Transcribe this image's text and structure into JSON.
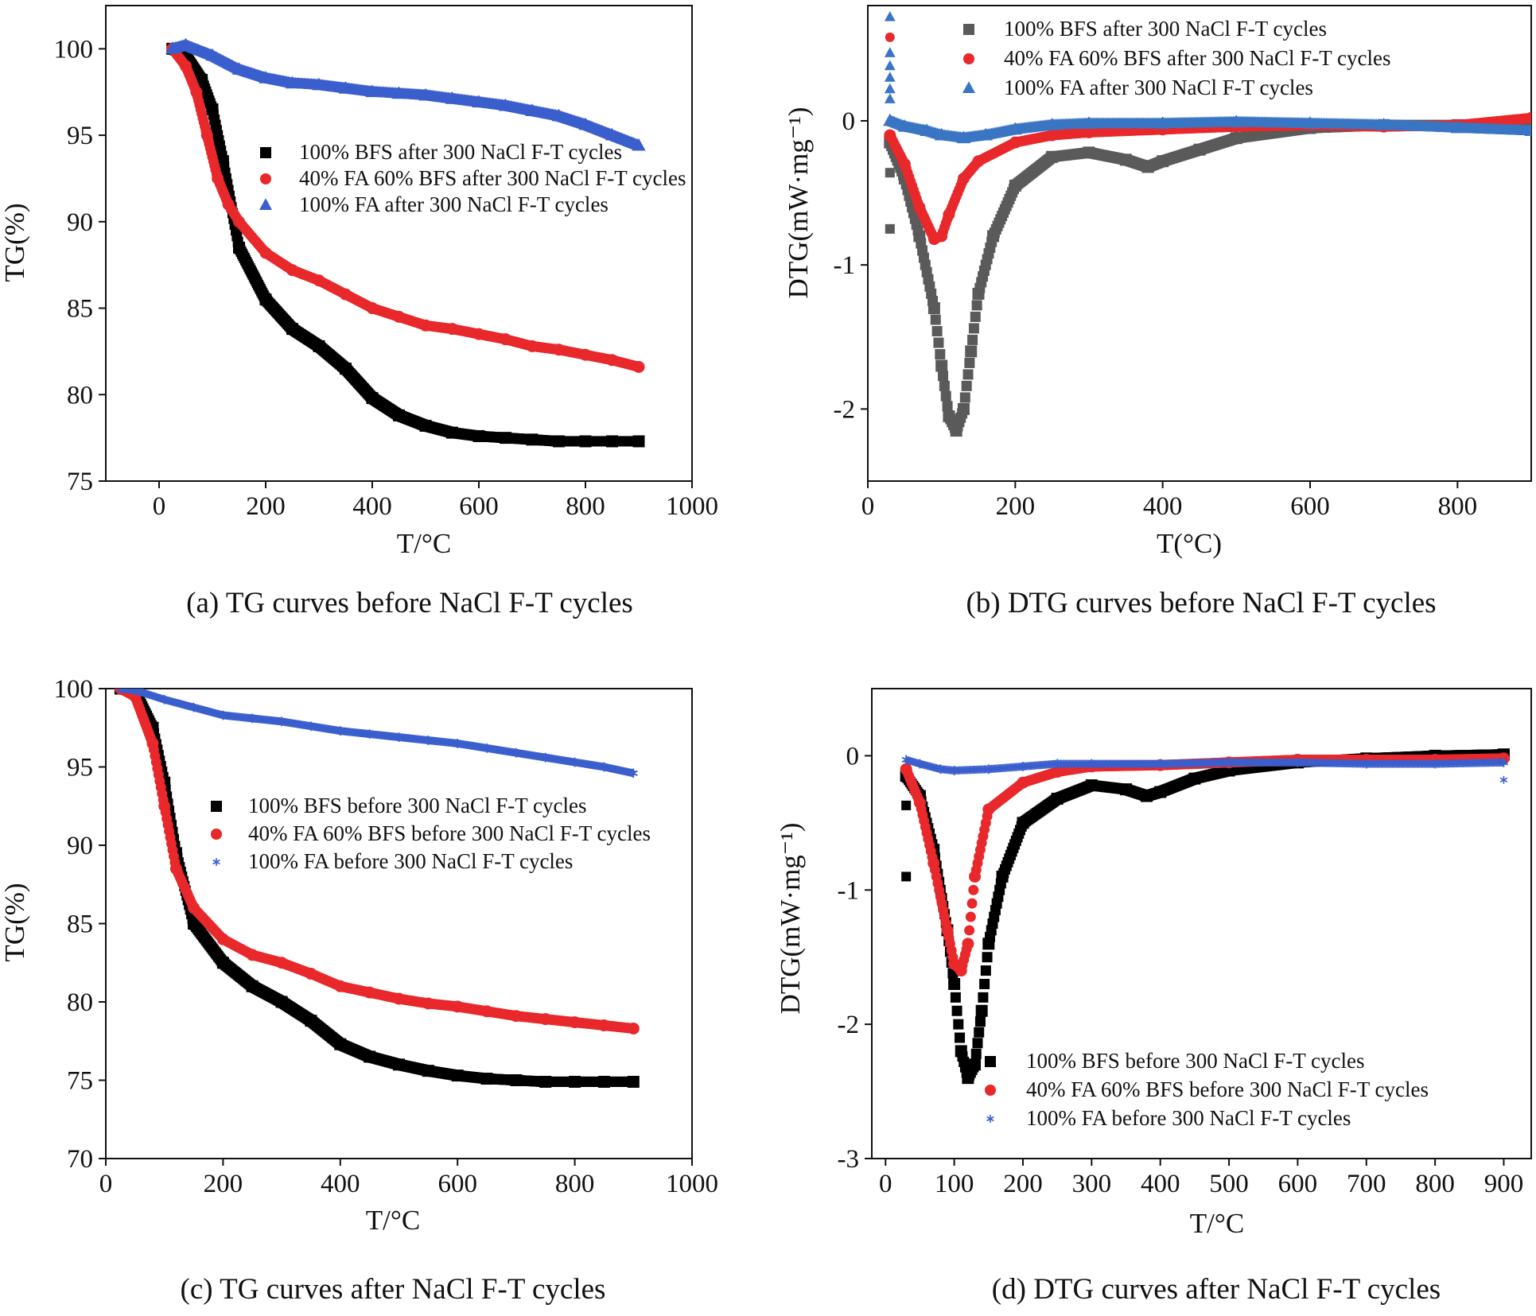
{
  "chart_data": [
    {
      "id": "a",
      "type": "scatter",
      "caption": "(a) TG curves before NaCl F-T cycles",
      "xlabel": "T/°C",
      "ylabel": "TG(%)",
      "xlim": [
        -100,
        1000
      ],
      "ylim": [
        75,
        102.5
      ],
      "xticks": [
        0,
        200,
        400,
        600,
        800,
        1000
      ],
      "yticks": [
        75,
        80,
        85,
        90,
        95,
        100
      ],
      "grid": false,
      "legend": "center-right",
      "series": [
        {
          "name": "100% BFS after 300 NaCl F-T cycles",
          "color": "#000000",
          "marker": "square",
          "x": [
            25,
            50,
            80,
            100,
            120,
            150,
            200,
            250,
            300,
            350,
            400,
            450,
            500,
            550,
            600,
            650,
            700,
            750,
            800,
            850,
            900
          ],
          "y": [
            100,
            99.6,
            98.2,
            96.5,
            93.5,
            88.5,
            85.5,
            83.8,
            82.8,
            81.5,
            79.8,
            78.8,
            78.2,
            77.8,
            77.6,
            77.5,
            77.4,
            77.3,
            77.3,
            77.3,
            77.3
          ]
        },
        {
          "name": "40% FA 60% BFS after 300 NaCl F-T cycles",
          "color": "#e8282b",
          "marker": "circle",
          "x": [
            25,
            50,
            70,
            90,
            110,
            130,
            150,
            200,
            250,
            300,
            350,
            400,
            450,
            500,
            550,
            600,
            650,
            700,
            750,
            800,
            850,
            900
          ],
          "y": [
            100,
            99,
            97.5,
            95,
            92.5,
            91,
            90,
            88.2,
            87.2,
            86.6,
            85.8,
            85,
            84.5,
            84,
            83.8,
            83.5,
            83.2,
            82.8,
            82.6,
            82.3,
            82,
            81.6
          ]
        },
        {
          "name": "100% FA after 300 NaCl F-T cycles",
          "color": "#3a5fcd",
          "marker": "triangle",
          "x": [
            25,
            50,
            100,
            150,
            200,
            250,
            300,
            350,
            400,
            450,
            500,
            550,
            600,
            650,
            700,
            750,
            800,
            850,
            900
          ],
          "y": [
            100,
            100.2,
            99.6,
            98.8,
            98.3,
            98,
            97.9,
            97.7,
            97.5,
            97.4,
            97.3,
            97.1,
            96.9,
            96.7,
            96.4,
            96.1,
            95.6,
            95.0,
            94.4
          ]
        }
      ]
    },
    {
      "id": "b",
      "type": "scatter",
      "caption": "(b) DTG curves before NaCl F-T cycles",
      "xlabel": "T(°C)",
      "ylabel": "DTG(mW·mg⁻¹)",
      "xlim": [
        0,
        900
      ],
      "ylim": [
        -2.5,
        0.8
      ],
      "xticks": [
        0,
        200,
        400,
        600,
        800
      ],
      "yticks": [
        -2,
        -1,
        0
      ],
      "grid": false,
      "legend": "top-right",
      "series": [
        {
          "name": "100% BFS after 300 NaCl F-T cycles",
          "color": "#5a5a5a",
          "marker": "square",
          "x": [
            30,
            50,
            70,
            90,
            100,
            110,
            120,
            130,
            140,
            150,
            170,
            200,
            250,
            300,
            350,
            380,
            400,
            450,
            500,
            600,
            700,
            800,
            900
          ],
          "y": [
            -0.15,
            -0.4,
            -0.8,
            -1.3,
            -1.7,
            -2.05,
            -2.15,
            -2.0,
            -1.6,
            -1.2,
            -0.8,
            -0.45,
            -0.25,
            -0.22,
            -0.27,
            -0.32,
            -0.28,
            -0.2,
            -0.12,
            -0.05,
            -0.03,
            -0.03,
            -0.01
          ]
        },
        {
          "name": "40% FA 60% BFS after 300 NaCl F-T cycles",
          "color": "#e8282b",
          "marker": "circle",
          "x": [
            30,
            50,
            70,
            90,
            100,
            110,
            130,
            150,
            200,
            250,
            300,
            400,
            500,
            600,
            700,
            800,
            900
          ],
          "y": [
            -0.1,
            -0.3,
            -0.6,
            -0.82,
            -0.8,
            -0.65,
            -0.4,
            -0.28,
            -0.15,
            -0.1,
            -0.08,
            -0.06,
            -0.04,
            -0.03,
            -0.04,
            -0.03,
            0.02
          ]
        },
        {
          "name": "100% FA after 300 NaCl F-T cycles",
          "color": "#3a75c4",
          "marker": "triangle",
          "x": [
            30,
            50,
            80,
            100,
            130,
            160,
            200,
            250,
            300,
            400,
            500,
            600,
            700,
            800,
            900
          ],
          "y": [
            0.0,
            -0.04,
            -0.07,
            -0.1,
            -0.12,
            -0.1,
            -0.06,
            -0.03,
            -0.02,
            -0.02,
            -0.01,
            -0.02,
            -0.03,
            -0.05,
            -0.07
          ]
        }
      ],
      "outliers": [
        {
          "series": 0,
          "x": 30,
          "y": -0.36
        },
        {
          "series": 0,
          "x": 30,
          "y": -0.75
        },
        {
          "series": 1,
          "x": 30,
          "y": 0.58
        },
        {
          "series": 2,
          "x": 30,
          "y": 0.72
        },
        {
          "series": 2,
          "x": 30,
          "y": 0.47
        },
        {
          "series": 2,
          "x": 30,
          "y": 0.38
        },
        {
          "series": 2,
          "x": 30,
          "y": 0.3
        },
        {
          "series": 2,
          "x": 30,
          "y": 0.22
        },
        {
          "series": 2,
          "x": 30,
          "y": 0.15
        }
      ]
    },
    {
      "id": "c",
      "type": "scatter",
      "caption": "(c) TG curves after NaCl F-T cycles",
      "xlabel": "T/°C",
      "ylabel": "TG(%)",
      "xlim": [
        0,
        1000
      ],
      "ylim": [
        70,
        100
      ],
      "xticks": [
        0,
        200,
        400,
        600,
        800,
        1000
      ],
      "yticks": [
        70,
        75,
        80,
        85,
        90,
        95,
        100
      ],
      "grid": false,
      "legend": "center-right",
      "series": [
        {
          "name": "100% BFS before 300 NaCl F-T cycles",
          "color": "#000000",
          "marker": "square",
          "x": [
            25,
            50,
            80,
            100,
            120,
            150,
            200,
            250,
            300,
            350,
            400,
            450,
            500,
            550,
            600,
            650,
            700,
            750,
            800,
            850,
            900
          ],
          "y": [
            100,
            99.8,
            97.5,
            94,
            89.5,
            85,
            82.5,
            81,
            80,
            78.8,
            77.3,
            76.5,
            76,
            75.6,
            75.3,
            75.1,
            75,
            74.9,
            74.9,
            74.9,
            74.9
          ]
        },
        {
          "name": "40% FA 60% BFS before 300 NaCl F-T cycles",
          "color": "#e8282b",
          "marker": "circle",
          "x": [
            25,
            50,
            80,
            100,
            120,
            150,
            200,
            250,
            300,
            350,
            400,
            450,
            500,
            550,
            600,
            650,
            700,
            750,
            800,
            850,
            900
          ],
          "y": [
            100,
            99.5,
            96.5,
            92.5,
            88.5,
            86,
            84,
            83,
            82.5,
            81.8,
            81,
            80.6,
            80.2,
            79.9,
            79.7,
            79.4,
            79.1,
            78.9,
            78.7,
            78.5,
            78.3
          ]
        },
        {
          "name": "100% FA before 300 NaCl F-T cycles",
          "color": "#3a5fcd",
          "marker": "star",
          "x": [
            25,
            50,
            100,
            150,
            200,
            250,
            300,
            350,
            400,
            450,
            500,
            550,
            600,
            650,
            700,
            750,
            800,
            850,
            900
          ],
          "y": [
            100,
            99.9,
            99.3,
            98.8,
            98.3,
            98.1,
            97.9,
            97.6,
            97.3,
            97.1,
            96.9,
            96.7,
            96.5,
            96.2,
            95.9,
            95.6,
            95.3,
            95.0,
            94.6
          ]
        }
      ]
    },
    {
      "id": "d",
      "type": "scatter",
      "caption": "(d) DTG curves after NaCl F-T cycles",
      "xlabel": "T/°C",
      "ylabel": "DTG(mW·mg⁻¹)",
      "xlim": [
        -20,
        940
      ],
      "ylim": [
        -3,
        0.5
      ],
      "xticks": [
        0,
        100,
        200,
        300,
        400,
        500,
        600,
        700,
        800,
        900
      ],
      "yticks": [
        -3,
        -2,
        -1,
        0
      ],
      "grid": false,
      "legend": "bottom-right",
      "series": [
        {
          "name": "100% BFS before 300 NaCl F-T cycles",
          "color": "#000000",
          "marker": "square",
          "x": [
            30,
            50,
            70,
            90,
            100,
            110,
            120,
            130,
            140,
            150,
            170,
            200,
            250,
            300,
            350,
            380,
            400,
            450,
            500,
            600,
            700,
            800,
            900
          ],
          "y": [
            -0.15,
            -0.3,
            -0.7,
            -1.3,
            -1.7,
            -2.2,
            -2.4,
            -2.3,
            -1.9,
            -1.4,
            -0.9,
            -0.5,
            -0.32,
            -0.22,
            -0.25,
            -0.3,
            -0.27,
            -0.17,
            -0.11,
            -0.05,
            -0.02,
            0.0,
            0.01
          ]
        },
        {
          "name": "40% FA 60% BFS before 300 NaCl F-T cycles",
          "color": "#e8282b",
          "marker": "circle",
          "x": [
            30,
            50,
            70,
            90,
            100,
            110,
            120,
            130,
            150,
            200,
            250,
            300,
            400,
            500,
            600,
            700,
            800,
            900
          ],
          "y": [
            -0.1,
            -0.35,
            -0.8,
            -1.3,
            -1.55,
            -1.6,
            -1.4,
            -0.9,
            -0.4,
            -0.2,
            -0.12,
            -0.08,
            -0.07,
            -0.05,
            -0.03,
            -0.03,
            -0.03,
            -0.02
          ]
        },
        {
          "name": "100% FA before 300 NaCl F-T cycles",
          "color": "#3a5fcd",
          "marker": "star",
          "x": [
            30,
            50,
            80,
            100,
            150,
            200,
            250,
            300,
            400,
            500,
            600,
            700,
            800,
            900
          ],
          "y": [
            -0.03,
            -0.06,
            -0.1,
            -0.11,
            -0.1,
            -0.08,
            -0.06,
            -0.06,
            -0.06,
            -0.05,
            -0.05,
            -0.06,
            -0.06,
            -0.05
          ]
        }
      ],
      "outliers": [
        {
          "series": 0,
          "x": 30,
          "y": -0.37
        },
        {
          "series": 0,
          "x": 30,
          "y": -0.9
        },
        {
          "series": 2,
          "x": 900,
          "y": -0.18
        }
      ]
    }
  ]
}
